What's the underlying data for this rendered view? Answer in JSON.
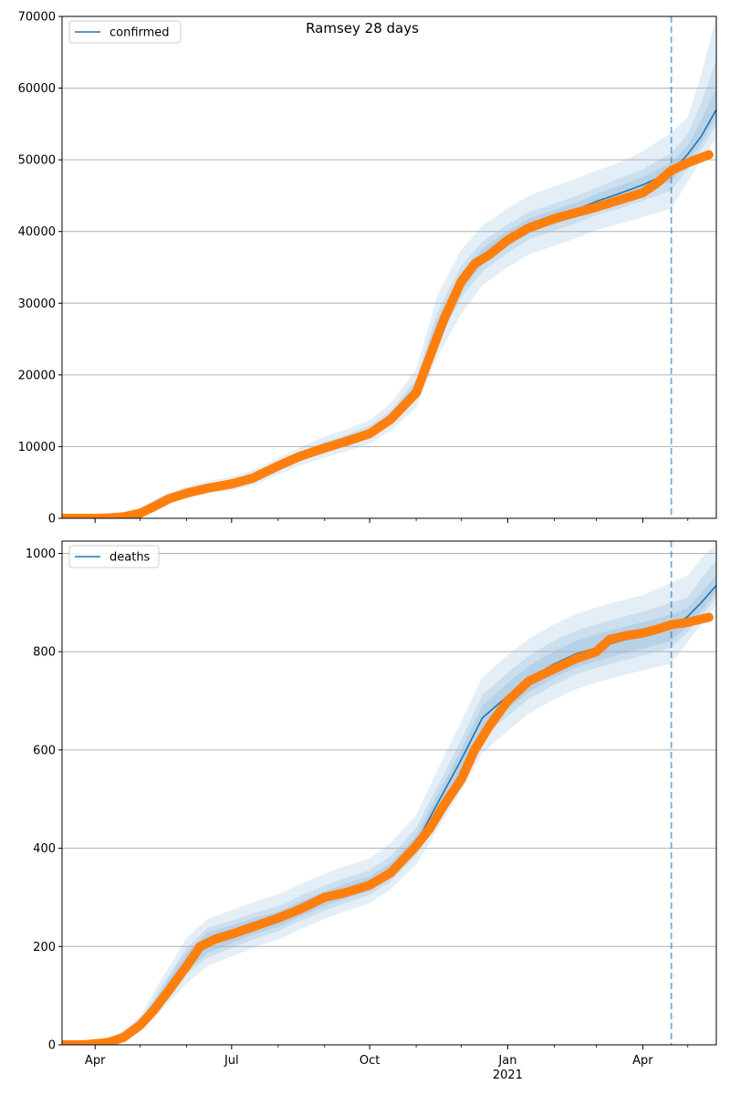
{
  "chart_data": {
    "type": "line",
    "title": "Ramsey 28 days",
    "x_start": "2020-03-10",
    "x_end": "2021-05-20",
    "forecast_start": "2021-04-20",
    "x_ticks": [
      {
        "date": "2020-04-01",
        "label": "Apr",
        "sublabel": ""
      },
      {
        "date": "2020-07-01",
        "label": "Jul",
        "sublabel": ""
      },
      {
        "date": "2020-10-01",
        "label": "Oct",
        "sublabel": ""
      },
      {
        "date": "2021-01-01",
        "label": "Jan",
        "sublabel": "2021"
      },
      {
        "date": "2021-04-01",
        "label": "Apr",
        "sublabel": ""
      }
    ],
    "x_minor_ticks": [
      "2020-05-01",
      "2020-06-01",
      "2020-08-01",
      "2020-09-01",
      "2020-11-01",
      "2020-12-01",
      "2021-02-01",
      "2021-03-01",
      "2021-05-01"
    ],
    "colors": {
      "model": "#1f77b4",
      "observed": "#ff7f0e",
      "band": "#1f77b4",
      "grid": "#b0b0b0",
      "forecast_line": "#1f77b4"
    },
    "panels": [
      {
        "legend": "confirmed",
        "legend_position": "upper-left",
        "ylim": [
          0,
          70000
        ],
        "y_ticks": [
          0,
          10000,
          20000,
          30000,
          40000,
          50000,
          60000,
          70000
        ],
        "grid": "horizontal",
        "model": {
          "x": [
            "2020-03-10",
            "2020-04-01",
            "2020-04-15",
            "2020-05-01",
            "2020-05-15",
            "2020-06-01",
            "2020-06-15",
            "2020-07-01",
            "2020-07-15",
            "2020-08-01",
            "2020-08-15",
            "2020-09-01",
            "2020-09-15",
            "2020-10-01",
            "2020-10-15",
            "2020-11-01",
            "2020-11-15",
            "2020-12-01",
            "2020-12-15",
            "2021-01-01",
            "2021-01-15",
            "2021-02-01",
            "2021-02-15",
            "2021-03-01",
            "2021-03-15",
            "2021-04-01",
            "2021-04-20",
            "2021-05-01",
            "2021-05-10",
            "2021-05-20"
          ],
          "y": [
            0,
            50,
            150,
            800,
            2400,
            3600,
            4300,
            4800,
            5600,
            7200,
            8500,
            9900,
            10800,
            12000,
            14000,
            18000,
            26500,
            33000,
            36500,
            39000,
            40800,
            42000,
            43000,
            44200,
            45200,
            46500,
            48300,
            50800,
            53300,
            57000
          ],
          "bands": [
            {
              "lower": [
                0,
                0,
                0,
                400,
                1800,
                2900,
                3500,
                3900,
                4600,
                6100,
                7300,
                8500,
                9300,
                10400,
                12200,
                15500,
                22500,
                28500,
                32500,
                35000,
                36800,
                38000,
                39000,
                40200,
                41000,
                42000,
                43200,
                47000,
                50000,
                53000
              ],
              "upper": [
                0,
                200,
                500,
                1300,
                3100,
                4400,
                5200,
                5800,
                6700,
                8400,
                9800,
                11400,
                12400,
                13700,
                16000,
                20800,
                31000,
                37500,
                40800,
                43200,
                45000,
                46300,
                47300,
                48500,
                49500,
                51200,
                53800,
                56000,
                62000,
                70000
              ]
            },
            {
              "lower": [
                0,
                20,
                60,
                550,
                2000,
                3200,
                3800,
                4200,
                5000,
                6600,
                7900,
                9200,
                10000,
                11200,
                13000,
                16600,
                24300,
                30800,
                34400,
                37000,
                38900,
                40100,
                41100,
                42300,
                43100,
                44300,
                45700,
                48700,
                51400,
                54800
              ],
              "upper": [
                0,
                100,
                300,
                1050,
                2800,
                4000,
                4800,
                5300,
                6200,
                7800,
                9100,
                10700,
                11600,
                12900,
                15000,
                19400,
                28700,
                35200,
                38600,
                41000,
                42700,
                43900,
                44900,
                46100,
                47300,
                48700,
                51000,
                53600,
                58000,
                64000
              ]
            },
            {
              "lower": [
                0,
                35,
                100,
                650,
                2150,
                3350,
                3950,
                4400,
                5250,
                6850,
                8150,
                9500,
                10350,
                11550,
                13450,
                17200,
                25300,
                31800,
                35400,
                37900,
                39800,
                41000,
                42000,
                43200,
                44100,
                45400,
                47000,
                49700,
                52300,
                55900
              ],
              "upper": [
                0,
                70,
                220,
                950,
                2650,
                3850,
                4650,
                5200,
                5950,
                7550,
                8850,
                10300,
                11250,
                12450,
                14550,
                18800,
                27700,
                34200,
                37600,
                40100,
                41800,
                43000,
                44000,
                45200,
                46300,
                47600,
                49600,
                52000,
                55500,
                60000
              ]
            }
          ]
        },
        "observed": {
          "x": [
            "2020-03-10",
            "2020-03-20",
            "2020-04-01",
            "2020-04-10",
            "2020-04-20",
            "2020-05-01",
            "2020-05-10",
            "2020-05-20",
            "2020-06-01",
            "2020-06-15",
            "2020-07-01",
            "2020-07-15",
            "2020-08-01",
            "2020-08-15",
            "2020-09-01",
            "2020-09-15",
            "2020-10-01",
            "2020-10-15",
            "2020-11-01",
            "2020-11-10",
            "2020-11-20",
            "2020-12-01",
            "2020-12-10",
            "2020-12-20",
            "2021-01-01",
            "2021-01-15",
            "2021-02-01",
            "2021-02-15",
            "2021-03-01",
            "2021-03-15",
            "2021-04-01",
            "2021-04-10",
            "2021-04-20",
            "2021-05-01",
            "2021-05-15"
          ],
          "y": [
            0,
            0,
            0,
            50,
            200,
            700,
            1600,
            2700,
            3500,
            4200,
            4800,
            5600,
            7300,
            8600,
            9800,
            10700,
            11800,
            13800,
            17500,
            22500,
            28000,
            33000,
            35500,
            36800,
            38800,
            40500,
            41800,
            42600,
            43400,
            44300,
            45400,
            46700,
            48500,
            49600,
            50700
          ]
        }
      },
      {
        "legend": "deaths",
        "legend_position": "upper-left",
        "ylim": [
          0,
          1025
        ],
        "y_ticks": [
          0,
          200,
          400,
          600,
          800,
          1000
        ],
        "grid": "horizontal",
        "model": {
          "x": [
            "2020-03-10",
            "2020-04-01",
            "2020-04-15",
            "2020-05-01",
            "2020-05-15",
            "2020-06-01",
            "2020-06-15",
            "2020-07-01",
            "2020-07-15",
            "2020-08-01",
            "2020-08-15",
            "2020-09-01",
            "2020-09-15",
            "2020-10-01",
            "2020-10-15",
            "2020-11-01",
            "2020-11-15",
            "2020-12-01",
            "2020-12-15",
            "2021-01-01",
            "2021-01-15",
            "2021-02-01",
            "2021-02-15",
            "2021-03-01",
            "2021-03-15",
            "2021-04-01",
            "2021-04-20",
            "2021-05-01",
            "2021-05-10",
            "2021-05-20"
          ],
          "y": [
            0,
            2,
            10,
            40,
            100,
            170,
            210,
            225,
            240,
            255,
            275,
            295,
            310,
            325,
            355,
            410,
            490,
            580,
            665,
            710,
            745,
            775,
            795,
            808,
            820,
            833,
            848,
            872,
            900,
            935
          ],
          "bands": [
            {
              "lower": [
                0,
                0,
                3,
                25,
                70,
                125,
                160,
                180,
                197,
                214,
                234,
                256,
                272,
                288,
                316,
                367,
                437,
                518,
                594,
                639,
                674,
                703,
                723,
                737,
                749,
                762,
                776,
                820,
                855,
                895
              ],
              "upper": [
                0,
                5,
                18,
                58,
                132,
                218,
                256,
                274,
                290,
                306,
                326,
                348,
                364,
                379,
                411,
                468,
                558,
                658,
                748,
                793,
                826,
                856,
                876,
                890,
                902,
                915,
                940,
                955,
                990,
                1020
              ]
            },
            {
              "lower": [
                0,
                1,
                6,
                31,
                82,
                143,
                178,
                197,
                214,
                231,
                251,
                273,
                289,
                305,
                333,
                386,
                462,
                546,
                624,
                669,
                704,
                733,
                753,
                767,
                779,
                792,
                808,
                840,
                870,
                910
              ],
              "upper": [
                0,
                3,
                14,
                50,
                118,
                197,
                238,
                253,
                267,
                282,
                302,
                324,
                340,
                355,
                384,
                442,
                525,
                620,
                712,
                757,
                792,
                822,
                842,
                856,
                868,
                881,
                900,
                910,
                950,
                985
              ]
            },
            {
              "lower": [
                0,
                1,
                8,
                34,
                88,
                152,
                187,
                207,
                224,
                240,
                260,
                282,
                298,
                313,
                342,
                395,
                473,
                558,
                638,
                683,
                718,
                747,
                767,
                781,
                793,
                806,
                822,
                852,
                882,
                920
              ],
              "upper": [
                0,
                3,
                12,
                46,
                111,
                188,
                229,
                243,
                257,
                271,
                291,
                312,
                328,
                343,
                370,
                426,
                508,
                600,
                690,
                736,
                771,
                801,
                821,
                835,
                847,
                860,
                875,
                890,
                920,
                955
              ]
            }
          ]
        },
        "observed": {
          "x": [
            "2020-03-10",
            "2020-03-25",
            "2020-04-10",
            "2020-04-20",
            "2020-05-01",
            "2020-05-10",
            "2020-05-20",
            "2020-06-01",
            "2020-06-10",
            "2020-06-20",
            "2020-07-01",
            "2020-07-15",
            "2020-08-01",
            "2020-08-15",
            "2020-09-01",
            "2020-09-15",
            "2020-10-01",
            "2020-10-15",
            "2020-11-01",
            "2020-11-10",
            "2020-11-20",
            "2020-12-01",
            "2020-12-10",
            "2020-12-20",
            "2021-01-01",
            "2021-01-15",
            "2021-02-01",
            "2021-02-15",
            "2021-03-01",
            "2021-03-10",
            "2021-03-20",
            "2021-04-01",
            "2021-04-10",
            "2021-04-20",
            "2021-05-01",
            "2021-05-15"
          ],
          "y": [
            0,
            0,
            5,
            15,
            40,
            70,
            110,
            160,
            200,
            215,
            225,
            240,
            258,
            275,
            300,
            310,
            325,
            350,
            405,
            440,
            490,
            540,
            600,
            650,
            700,
            740,
            765,
            785,
            800,
            825,
            832,
            838,
            845,
            855,
            860,
            870
          ]
        }
      }
    ]
  }
}
